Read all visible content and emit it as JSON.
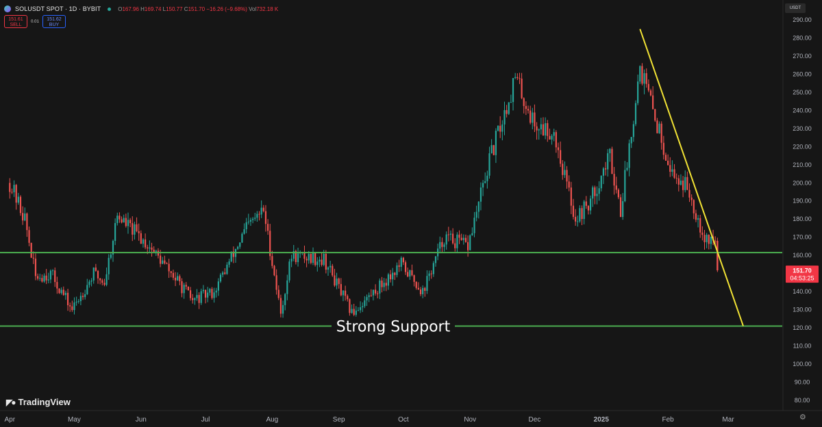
{
  "header": {
    "symbol": "SOLUSDT SPOT · 1D · BYBIT",
    "ohlc": {
      "o_label": "O",
      "o": "167.96",
      "h_label": "H",
      "h": "169.74",
      "l_label": "L",
      "l": "150.77",
      "c_label": "C",
      "c": "151.70",
      "change": "−16.26 (−9.68%)",
      "vol_label": "Vol",
      "vol": "732.18 K"
    },
    "sell": {
      "price": "151.61",
      "label": "SELL"
    },
    "spread": "0.01",
    "buy": {
      "price": "151.62",
      "label": "BUY"
    }
  },
  "currency_unit": "USDT",
  "brand": "TradingView",
  "colors": {
    "up": "#26a69a",
    "down": "#ef5350",
    "support_line": "#4caf50",
    "trendline": "#f2e335",
    "price_badge": "#f23645",
    "background": "#161616"
  },
  "chart_data": {
    "type": "candlestick",
    "x_ticks": [
      "Apr",
      "May",
      "Jun",
      "Jul",
      "Aug",
      "Sep",
      "Oct",
      "Nov",
      "Dec",
      "2025",
      "Feb",
      "Mar"
    ],
    "y_ticks": [
      "80.00",
      "90.00",
      "100.00",
      "110.00",
      "120.00",
      "130.00",
      "140.00",
      "150.00",
      "160.00",
      "170.00",
      "180.00",
      "190.00",
      "200.00",
      "210.00",
      "220.00",
      "230.00",
      "240.00",
      "250.00",
      "260.00",
      "270.00",
      "280.00",
      "290.00"
    ],
    "ylim": [
      75,
      298
    ],
    "scale": "linear",
    "grid": false,
    "price_path": [
      {
        "date": "2024-04-01",
        "close": 200
      },
      {
        "date": "2024-04-08",
        "close": 180
      },
      {
        "date": "2024-04-13",
        "close": 148
      },
      {
        "date": "2024-04-20",
        "close": 150
      },
      {
        "date": "2024-04-30",
        "close": 130
      },
      {
        "date": "2024-05-10",
        "close": 150
      },
      {
        "date": "2024-05-15",
        "close": 145
      },
      {
        "date": "2024-05-21",
        "close": 182
      },
      {
        "date": "2024-06-05",
        "close": 165
      },
      {
        "date": "2024-06-15",
        "close": 150
      },
      {
        "date": "2024-06-25",
        "close": 135
      },
      {
        "date": "2024-07-05",
        "close": 140
      },
      {
        "date": "2024-07-20",
        "close": 175
      },
      {
        "date": "2024-07-28",
        "close": 185
      },
      {
        "date": "2024-08-05",
        "close": 128
      },
      {
        "date": "2024-08-10",
        "close": 160
      },
      {
        "date": "2024-08-25",
        "close": 158
      },
      {
        "date": "2024-09-07",
        "close": 128
      },
      {
        "date": "2024-09-20",
        "close": 143
      },
      {
        "date": "2024-09-30",
        "close": 155
      },
      {
        "date": "2024-10-10",
        "close": 140
      },
      {
        "date": "2024-10-20",
        "close": 170
      },
      {
        "date": "2024-10-31",
        "close": 165
      },
      {
        "date": "2024-11-10",
        "close": 212
      },
      {
        "date": "2024-11-22",
        "close": 258
      },
      {
        "date": "2024-12-01",
        "close": 232
      },
      {
        "date": "2024-12-10",
        "close": 228
      },
      {
        "date": "2024-12-20",
        "close": 180
      },
      {
        "date": "2024-12-27",
        "close": 190
      },
      {
        "date": "2025-01-05",
        "close": 215
      },
      {
        "date": "2025-01-10",
        "close": 185
      },
      {
        "date": "2025-01-19",
        "close": 265
      },
      {
        "date": "2025-01-25",
        "close": 240
      },
      {
        "date": "2025-02-03",
        "close": 205
      },
      {
        "date": "2025-02-10",
        "close": 198
      },
      {
        "date": "2025-02-18",
        "close": 170
      },
      {
        "date": "2025-02-23",
        "close": 168
      },
      {
        "date": "2025-02-24",
        "close": 152
      }
    ],
    "last_candle": {
      "date": "2025-02-24",
      "open": 167.96,
      "high": 169.74,
      "low": 150.77,
      "close": 151.7
    },
    "horizontal_levels": [
      {
        "value": 161.53,
        "label": "161.53"
      },
      {
        "value": 120.94,
        "label": "120.94",
        "annotation": "Strong Support"
      }
    ],
    "trendline": [
      {
        "date": "2025-01-19",
        "value": 285
      },
      {
        "date": "2025-03-08",
        "value": 120.94
      }
    ],
    "last_price": {
      "value": 151.7,
      "label": "151.70",
      "countdown": "04:53:25"
    }
  }
}
